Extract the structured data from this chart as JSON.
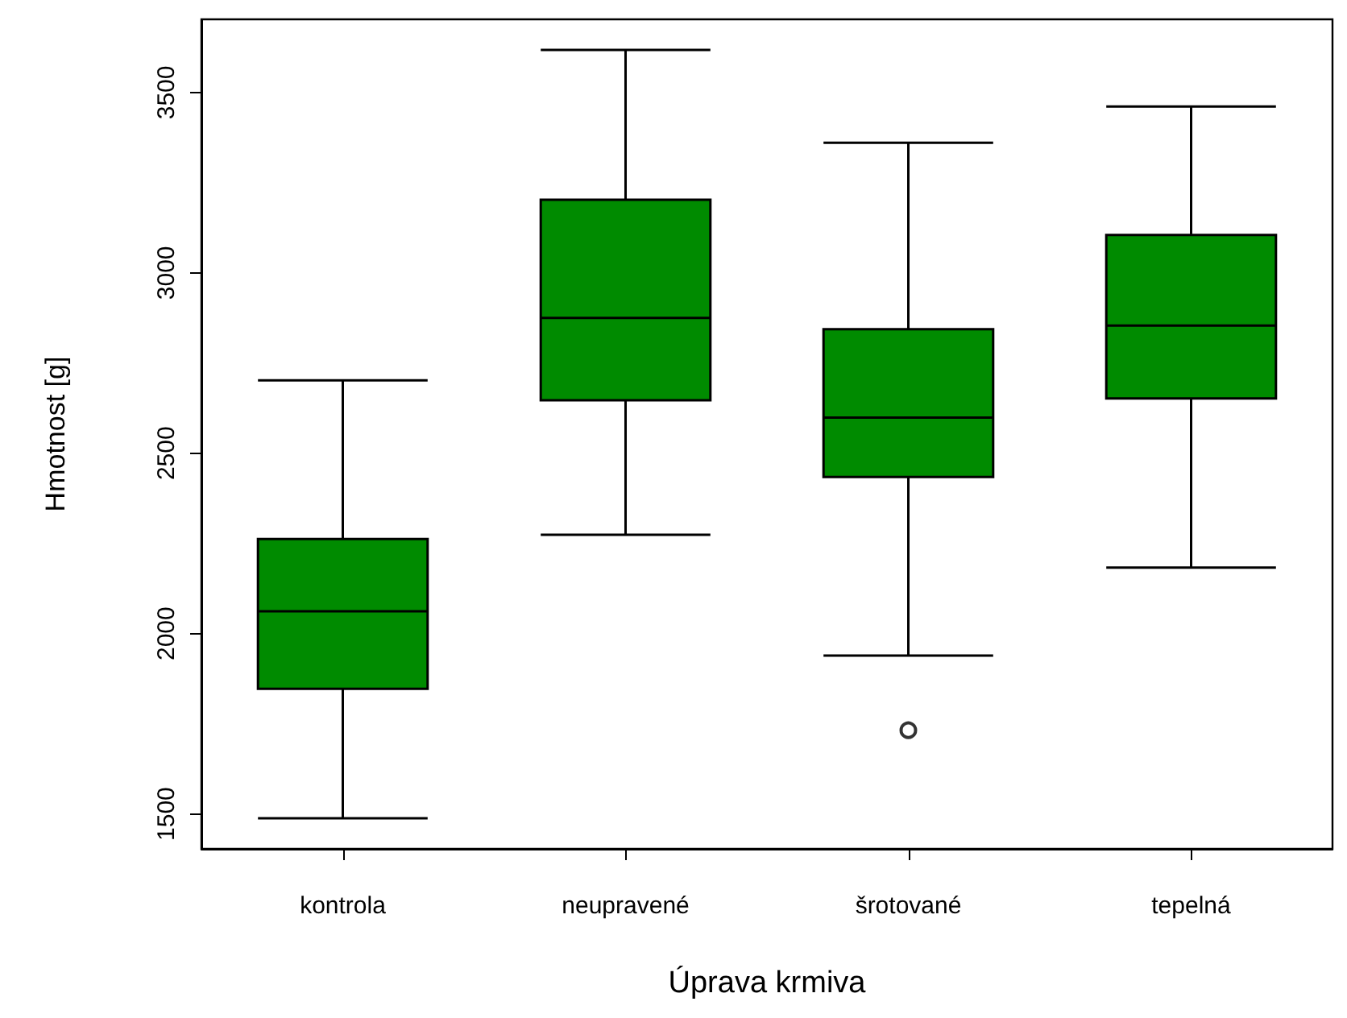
{
  "chart_data": {
    "type": "box",
    "xlabel": "Úprava krmiva",
    "ylabel": "Hmotnost [g]",
    "categories": [
      "kontrola",
      "neupravené",
      "šrotované",
      "tepelná"
    ],
    "color": "#008b00",
    "boxes": [
      {
        "low": 1488,
        "q1": 1847,
        "median": 2062,
        "q3": 2262,
        "high": 2702
      },
      {
        "low": 2274,
        "q1": 2647,
        "median": 2875,
        "q3": 3203,
        "high": 3618
      },
      {
        "low": 1939,
        "q1": 2434,
        "median": 2599,
        "q3": 2844,
        "high": 3361,
        "outliers": [
          1732
        ]
      },
      {
        "low": 2183,
        "q1": 2652,
        "median": 2854,
        "q3": 3105,
        "high": 3461
      }
    ],
    "ylim": [
      1403,
      3703
    ],
    "yticks": [
      1500,
      2000,
      2500,
      3000,
      3500
    ]
  }
}
